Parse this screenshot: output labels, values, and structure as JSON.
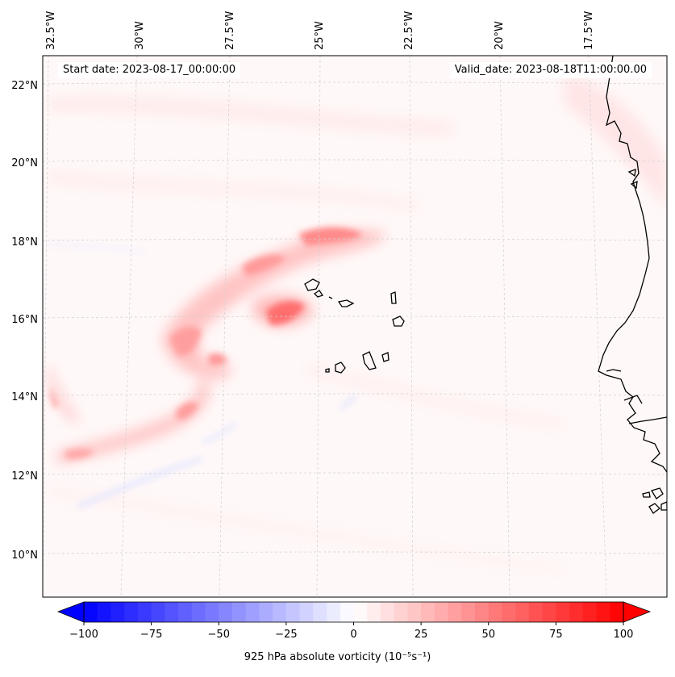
{
  "header": {
    "start_date": "Start date: 2023-08-17_00:00:00",
    "valid_date": "Valid_date: 2023-08-18T11:00:00.00"
  },
  "map": {
    "lon_labels": [
      "32.5°W",
      "30°W",
      "27.5°W",
      "25°W",
      "22.5°W",
      "20°W",
      "17.5°W"
    ],
    "lat_labels": [
      "22°N",
      "20°N",
      "18°N",
      "16°N",
      "14°N",
      "12°N",
      "10°N"
    ],
    "colors": {
      "positive": "#ff0000",
      "negative": "#0000ff",
      "coastline": "#000000",
      "gridline": "#cccccc"
    }
  },
  "colorbar": {
    "tick_labels": [
      "−100",
      "−75",
      "−50",
      "−25",
      "0",
      "25",
      "50",
      "75",
      "100"
    ],
    "label": "925 hPa absolute vorticity (10⁻⁵s⁻¹)",
    "range": [
      -100,
      100
    ],
    "colormap": "bwr"
  }
}
